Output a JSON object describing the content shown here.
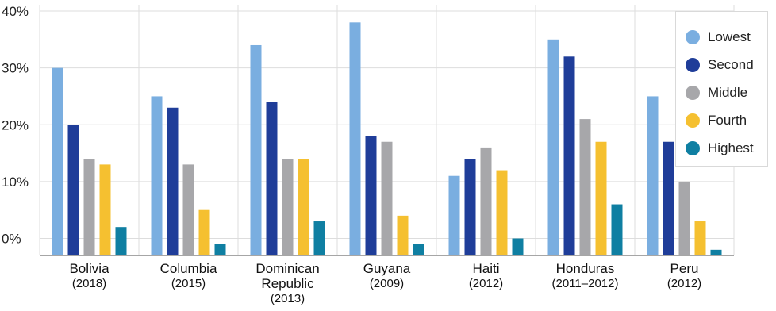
{
  "chart_data": {
    "type": "bar",
    "categories": [
      {
        "name": "Bolivia",
        "name_line2": "",
        "year": "(2018)"
      },
      {
        "name": "Columbia",
        "name_line2": "",
        "year": "(2015)"
      },
      {
        "name": "Dominican",
        "name_line2": "Republic",
        "year": "(2013)"
      },
      {
        "name": "Guyana",
        "name_line2": "",
        "year": "(2009)"
      },
      {
        "name": "Haiti",
        "name_line2": "",
        "year": "(2012)"
      },
      {
        "name": "Honduras",
        "name_line2": "",
        "year": "(2011–2012)"
      },
      {
        "name": "Peru",
        "name_line2": "",
        "year": "(2012)"
      }
    ],
    "series": [
      {
        "name": "Lowest",
        "color": "#7aaee0",
        "values": [
          30,
          25,
          34,
          38,
          11,
          35,
          25
        ]
      },
      {
        "name": "Second",
        "color": "#1f3d99",
        "values": [
          20,
          23,
          24,
          18,
          14,
          32,
          17
        ]
      },
      {
        "name": "Middle",
        "color": "#a7a7aa",
        "values": [
          14,
          13,
          14,
          17,
          16,
          21,
          10
        ]
      },
      {
        "name": "Fourth",
        "color": "#f5c030",
        "values": [
          13,
          5,
          14,
          4,
          12,
          17,
          3
        ]
      },
      {
        "name": "Highest",
        "color": "#0f7fa2",
        "values": [
          2,
          -1,
          3,
          -1,
          0,
          6,
          -2
        ]
      }
    ],
    "yticks": [
      "0%",
      "10%",
      "20%",
      "30%",
      "40%"
    ],
    "ytick_values": [
      0,
      10,
      20,
      30,
      40
    ],
    "ylim": [
      -3,
      40
    ],
    "grid": true,
    "legend_position": "top-right",
    "title": "",
    "xlabel": "",
    "ylabel": ""
  }
}
